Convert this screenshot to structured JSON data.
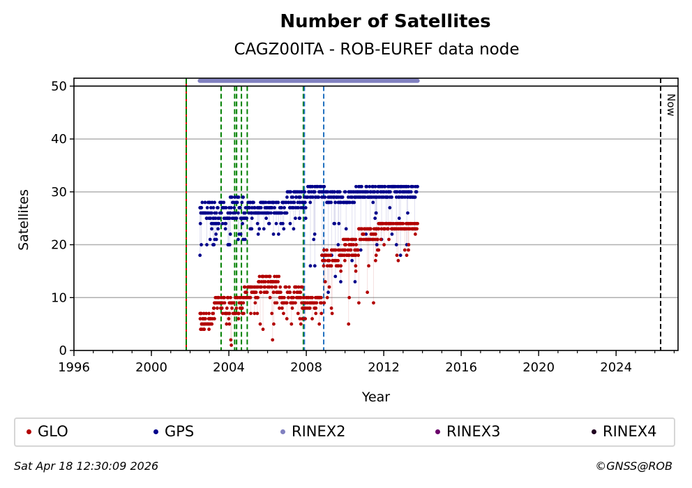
{
  "chart_data": {
    "type": "scatter",
    "title": "Number of Satellites",
    "subtitle": "CAGZ00ITA - ROB-EUREF data node",
    "xlabel": "Year",
    "ylabel": "Satellites",
    "xlim": [
      1996,
      2027.2
    ],
    "ylim": [
      0,
      51.5
    ],
    "x_ticks": [
      "1996",
      "2000",
      "2004",
      "2008",
      "2012",
      "2016",
      "2020",
      "2024"
    ],
    "x_tick_values": [
      1996,
      2000,
      2004,
      2008,
      2012,
      2016,
      2020,
      2024
    ],
    "y_ticks": [
      "0",
      "10",
      "20",
      "30",
      "40",
      "50"
    ],
    "y_tick_values": [
      0,
      10,
      20,
      30,
      40,
      50
    ],
    "grid": "horizontal",
    "now_label": "Now",
    "now_year": 2026.3,
    "reference_line_y": 50,
    "rinex2_coverage": {
      "start": 2002.5,
      "end": 2013.75,
      "y": 51
    },
    "event_lines": [
      {
        "year": 2001.8,
        "color": "#008000",
        "style": "red-green-dashed"
      },
      {
        "year": 2003.6,
        "color": "#008000",
        "style": "dashed"
      },
      {
        "year": 2004.3,
        "color": "#008000",
        "style": "dashed"
      },
      {
        "year": 2004.4,
        "color": "#008000",
        "style": "dashed"
      },
      {
        "year": 2004.65,
        "color": "#008000",
        "style": "dashed"
      },
      {
        "year": 2004.95,
        "color": "#008000",
        "style": "dashed"
      },
      {
        "year": 2007.85,
        "color": "#008000",
        "style": "dashed"
      },
      {
        "year": 2007.9,
        "color": "#1f6fbf",
        "style": "dashed"
      },
      {
        "year": 2008.9,
        "color": "#1f6fbf",
        "style": "dashed"
      }
    ],
    "series": [
      {
        "name": "GPS",
        "color": "#00008b",
        "segments": [
          {
            "x": [
              2002.5,
              2003.0
            ],
            "typical": [
              25,
              28
            ],
            "min": 17
          },
          {
            "x": [
              2003.0,
              2004.0
            ],
            "typical": [
              24,
              28
            ],
            "min": 20
          },
          {
            "x": [
              2004.0,
              2005.0
            ],
            "typical": [
              25,
              29
            ],
            "min": 20
          },
          {
            "x": [
              2005.0,
              2007.0
            ],
            "typical": [
              26,
              28
            ],
            "min": 22
          },
          {
            "x": [
              2007.0,
              2008.0
            ],
            "typical": [
              27,
              30
            ],
            "min": 23
          },
          {
            "x": [
              2008.0,
              2009.0
            ],
            "typical": [
              29,
              31
            ],
            "min": 16
          },
          {
            "x": [
              2009.0,
              2010.5
            ],
            "typical": [
              28,
              30
            ],
            "min": 10
          },
          {
            "x": [
              2010.5,
              2011.5
            ],
            "typical": [
              29,
              31
            ],
            "min": 13
          },
          {
            "x": [
              2011.5,
              2012.5
            ],
            "typical": [
              29,
              31
            ],
            "min": 20
          },
          {
            "x": [
              2012.5,
              2013.75
            ],
            "typical": [
              29,
              31
            ],
            "min": 18
          }
        ]
      },
      {
        "name": "GLO",
        "color": "#b20000",
        "segments": [
          {
            "x": [
              2002.5,
              2003.2
            ],
            "typical": [
              5,
              7
            ],
            "min": 4
          },
          {
            "x": [
              2003.2,
              2003.8
            ],
            "typical": [
              8,
              10
            ],
            "min": 1
          },
          {
            "x": [
              2003.8,
              2004.8
            ],
            "typical": [
              7,
              10
            ],
            "min": 1
          },
          {
            "x": [
              2004.8,
              2005.5
            ],
            "typical": [
              10,
              12
            ],
            "min": 7
          },
          {
            "x": [
              2005.5,
              2006.6
            ],
            "typical": [
              11,
              14
            ],
            "min": 2
          },
          {
            "x": [
              2006.6,
              2007.8
            ],
            "typical": [
              9,
              12
            ],
            "min": 5
          },
          {
            "x": [
              2007.8,
              2008.8
            ],
            "typical": [
              8,
              10
            ],
            "min": 5
          },
          {
            "x": [
              2008.8,
              2009.8
            ],
            "typical": [
              16,
              19
            ],
            "min": 7
          },
          {
            "x": [
              2009.8,
              2010.7
            ],
            "typical": [
              18,
              21
            ],
            "min": 5
          },
          {
            "x": [
              2010.7,
              2011.7
            ],
            "typical": [
              21,
              23
            ],
            "min": 9
          },
          {
            "x": [
              2011.7,
              2013.75
            ],
            "typical": [
              23,
              24
            ],
            "min": 17
          }
        ]
      },
      {
        "name": "RINEX2",
        "color": "#8080c0",
        "segments": []
      },
      {
        "name": "RINEX3",
        "color": "#6a006a",
        "segments": []
      },
      {
        "name": "RINEX4",
        "color": "#200020",
        "segments": []
      }
    ]
  },
  "legend": {
    "items": [
      {
        "label": "GLO",
        "color": "#b20000"
      },
      {
        "label": "GPS",
        "color": "#00008b"
      },
      {
        "label": "RINEX2",
        "color": "#8080c0"
      },
      {
        "label": "RINEX3",
        "color": "#6a006a"
      },
      {
        "label": "RINEX4",
        "color": "#200020"
      }
    ]
  },
  "footer": {
    "timestamp": "Sat Apr 18 12:30:09 2026",
    "copyright": "©GNSS@ROB"
  }
}
